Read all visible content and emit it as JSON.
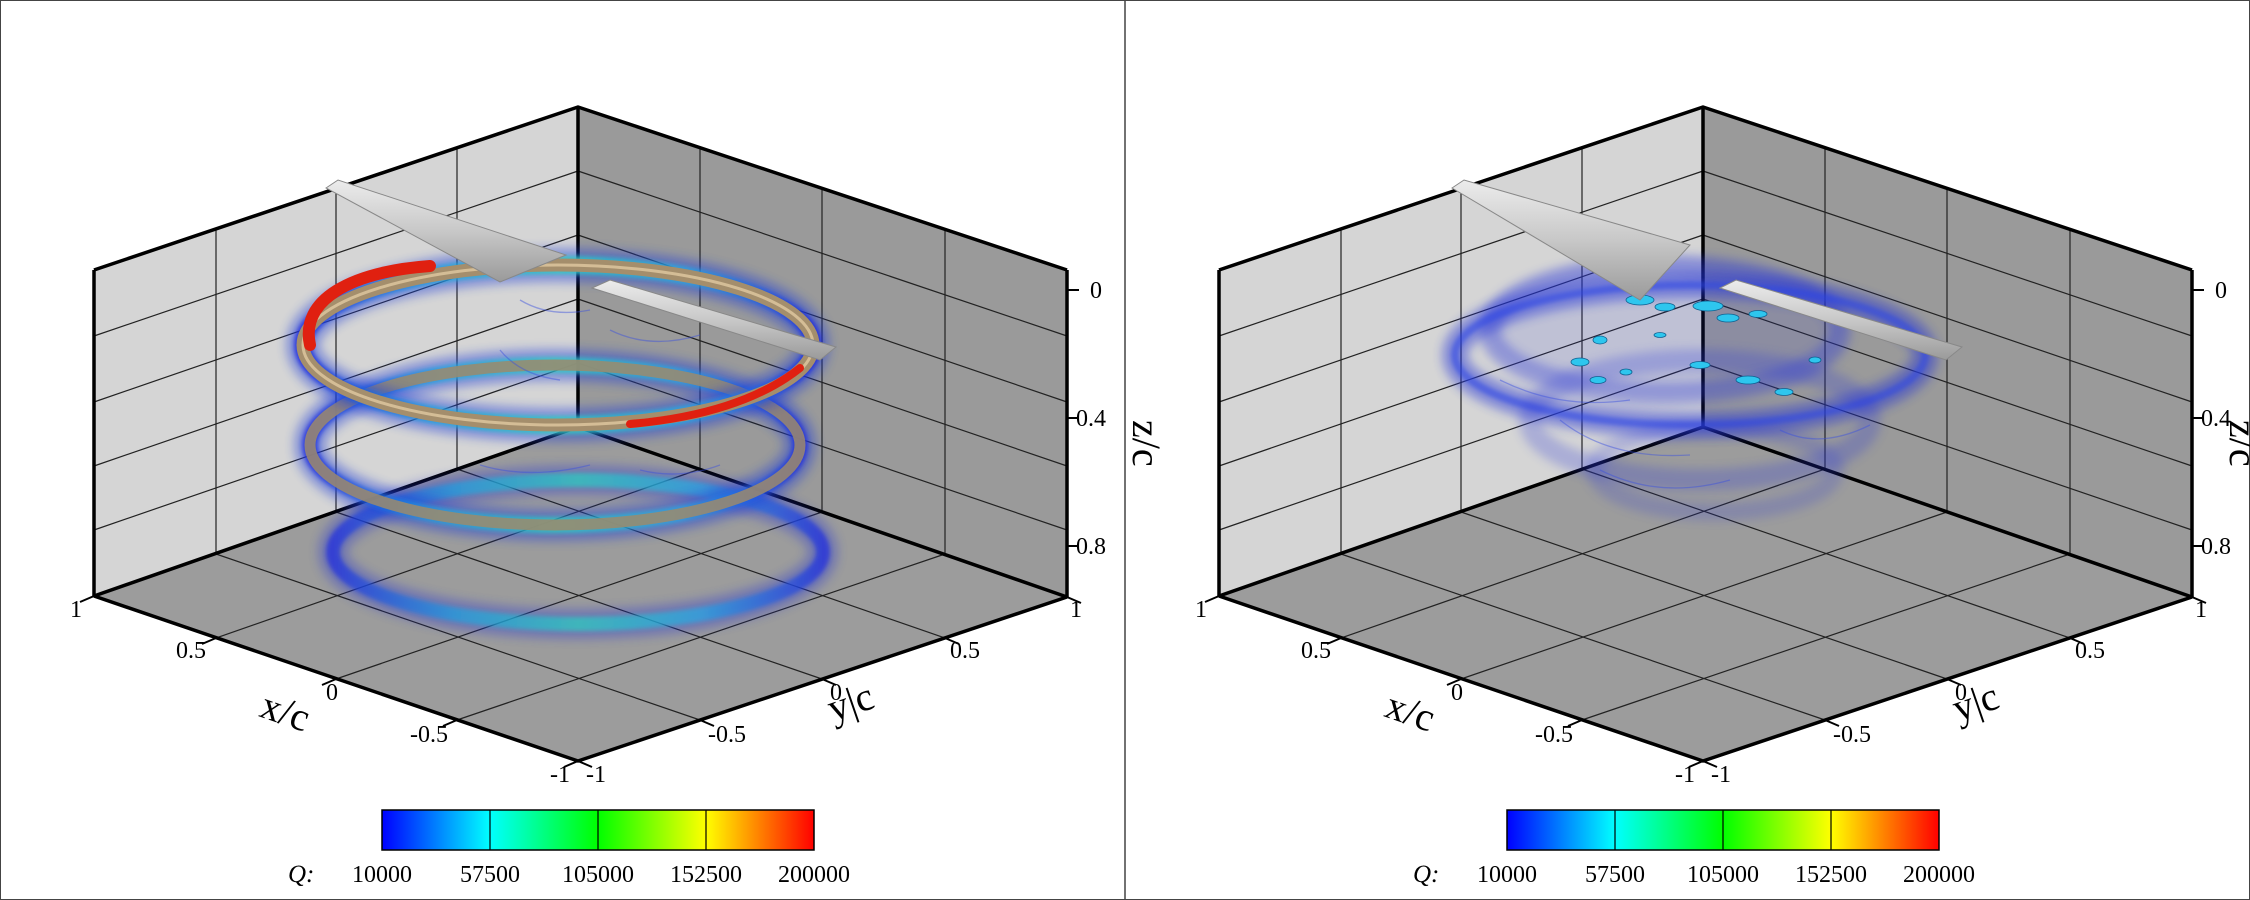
{
  "figure": {
    "panels": [
      {
        "id": "left",
        "axes": {
          "x_title": "x/c",
          "y_title": "y|c",
          "z_title": "z/c",
          "x_ticks": [
            "1",
            "0.5",
            "0",
            "-0.5",
            "-1"
          ],
          "y_ticks": [
            "-1",
            "-0.5",
            "0",
            "0.5",
            "1"
          ],
          "z_ticks": [
            "0",
            "0.4",
            "0.8"
          ]
        },
        "colorbar": {
          "title": "Q:",
          "labels": [
            "10000",
            "57500",
            "105000",
            "152500",
            "200000"
          ],
          "colors": [
            "#0000ff",
            "#00ffff",
            "#00ff00",
            "#ffff00",
            "#ff0000"
          ]
        },
        "content": {
          "helix_turns": 3,
          "highlight": "#e02010",
          "blade_color": "#d4d4d4"
        }
      },
      {
        "id": "right",
        "axes": {
          "x_title": "x/c",
          "y_title": "y|c",
          "z_title": "z/c",
          "x_ticks": [
            "1",
            "0.5",
            "0",
            "-0.5",
            "-1"
          ],
          "y_ticks": [
            "-1",
            "-0.5",
            "0",
            "0.5",
            "1"
          ],
          "z_ticks": [
            "0",
            "0.4",
            "0.8"
          ]
        },
        "colorbar": {
          "title": "Q:",
          "labels": [
            "10000",
            "57500",
            "105000",
            "152500",
            "200000"
          ],
          "colors": [
            "#0000ff",
            "#00ffff",
            "#00ff00",
            "#ffff00",
            "#ff0000"
          ]
        },
        "content": {
          "helix_turns": 1,
          "blade_color": "#d4d4d4"
        }
      }
    ]
  }
}
